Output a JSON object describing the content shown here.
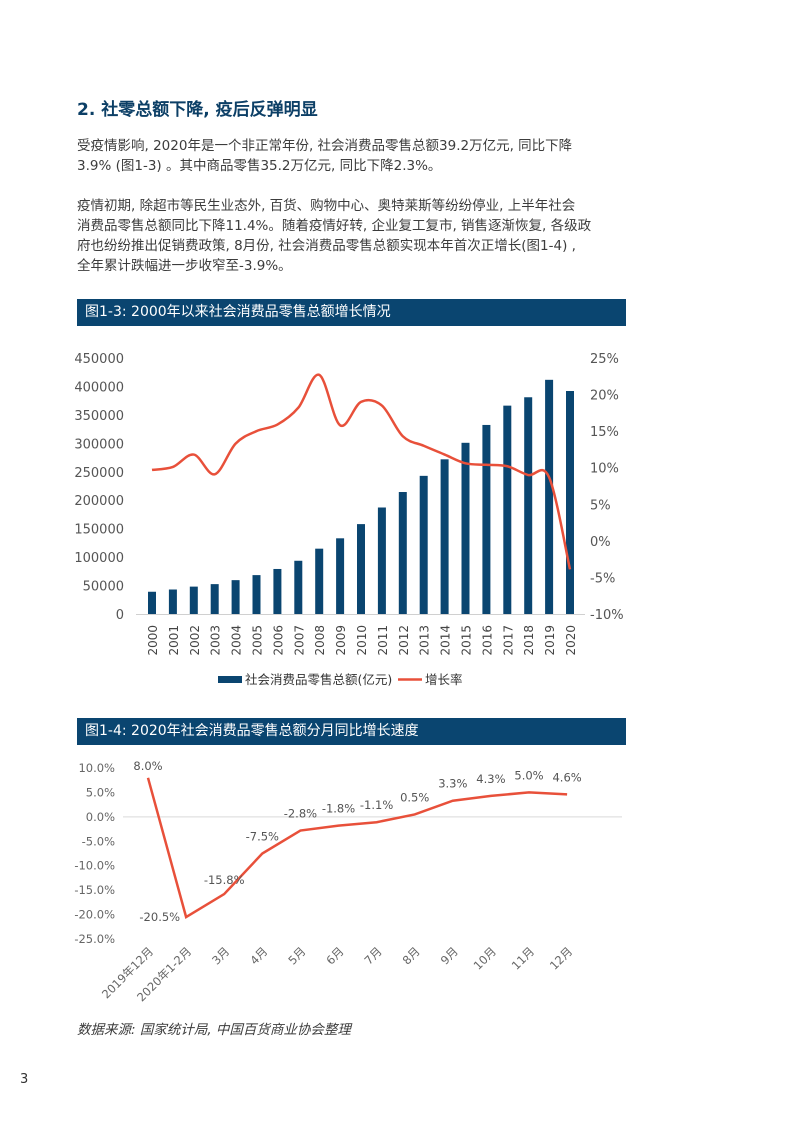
{
  "heading": "2. 社零总额下降, 疫后反弹明显",
  "paragraphs": [
    [
      "受疫情影响, 2020年是一个非正常年份, 社会消费品零售总额39.2万亿元, 同比下降",
      "3.9% (图1-3) 。其中商品零售35.2万亿元, 同比下降2.3%。"
    ],
    [
      "疫情初期, 除超市等民生业态外, 百货、购物中心、奥特莱斯等纷纷停业, 上半年社会",
      "消费品零售总额同比下降11.4%。随着疫情好转, 企业复工复市, 销售逐渐恢复, 各级政",
      "府也纷纷推出促销费政策, 8月份, 社会消费品零售总额实现本年首次正增长(图1-4) ,",
      "全年累计跌幅进一步收窄至-3.9%。"
    ]
  ],
  "figure1_title": "图1-3: 2000年以来社会消费品零售总额增长情况",
  "figure2_title": "图1-4: 2020年社会消费品零售总额分月同比增长速度",
  "source": "数据来源: 国家统计局, 中国百货商业协会整理",
  "page_number": "3",
  "colors": {
    "navy": "#0a4570",
    "red": "#e8503a"
  },
  "chart_data": [
    {
      "type": "bar+line",
      "categories": [
        "2000",
        "2001",
        "2002",
        "2003",
        "2004",
        "2005",
        "2006",
        "2007",
        "2008",
        "2009",
        "2010",
        "2011",
        "2012",
        "2013",
        "2014",
        "2015",
        "2016",
        "2017",
        "2018",
        "2019",
        "2020"
      ],
      "series": [
        {
          "name": "社会消费品零售总额(亿元)",
          "type": "bar",
          "axis": "left",
          "values": [
            39106,
            43055,
            48136,
            52516,
            59501,
            68353,
            79145,
            93572,
            114830,
            133048,
            158008,
            187206,
            214433,
            242843,
            271896,
            300931,
            332316,
            366262,
            380987,
            411649,
            391981
          ]
        },
        {
          "name": "增长率",
          "type": "line",
          "axis": "right",
          "values": [
            9.7,
            10.1,
            11.8,
            9.1,
            13.3,
            15.0,
            15.9,
            18.2,
            22.7,
            15.8,
            19.0,
            18.5,
            14.3,
            13.0,
            11.8,
            10.6,
            10.4,
            10.2,
            9.0,
            8.7,
            -3.9
          ]
        }
      ],
      "yleft_ticks": [
        "450000",
        "400000",
        "350000",
        "300000",
        "250000",
        "200000",
        "150000",
        "100000",
        "50000",
        "0"
      ],
      "yleft_lim": [
        0,
        450000
      ],
      "yright_ticks": [
        "25%",
        "20%",
        "15%",
        "10%",
        "5%",
        "0%",
        "-5%",
        "-10%"
      ],
      "yright_lim": [
        -10,
        25
      ],
      "legend_position": "bottom"
    },
    {
      "type": "line",
      "categories": [
        "2019年12月",
        "2020年1-2月",
        "3月",
        "4月",
        "5月",
        "6月",
        "7月",
        "8月",
        "9月",
        "10月",
        "11月",
        "12月"
      ],
      "values": [
        8.0,
        -20.5,
        -15.8,
        -7.5,
        -2.8,
        -1.8,
        -1.1,
        0.5,
        3.3,
        4.3,
        5.0,
        4.6
      ],
      "data_labels": [
        "8.0%",
        "-20.5%",
        "-15.8%",
        "-7.5%",
        "-2.8%",
        "-1.8%",
        "-1.1%",
        "0.5%",
        "3.3%",
        "4.3%",
        "5.0%",
        "4.6%"
      ],
      "y_ticks": [
        "10.0%",
        "5.0%",
        "0.0%",
        "-5.0%",
        "-10.0%",
        "-15.0%",
        "-20.0%",
        "-25.0%"
      ],
      "ylim": [
        -25,
        10
      ]
    }
  ]
}
